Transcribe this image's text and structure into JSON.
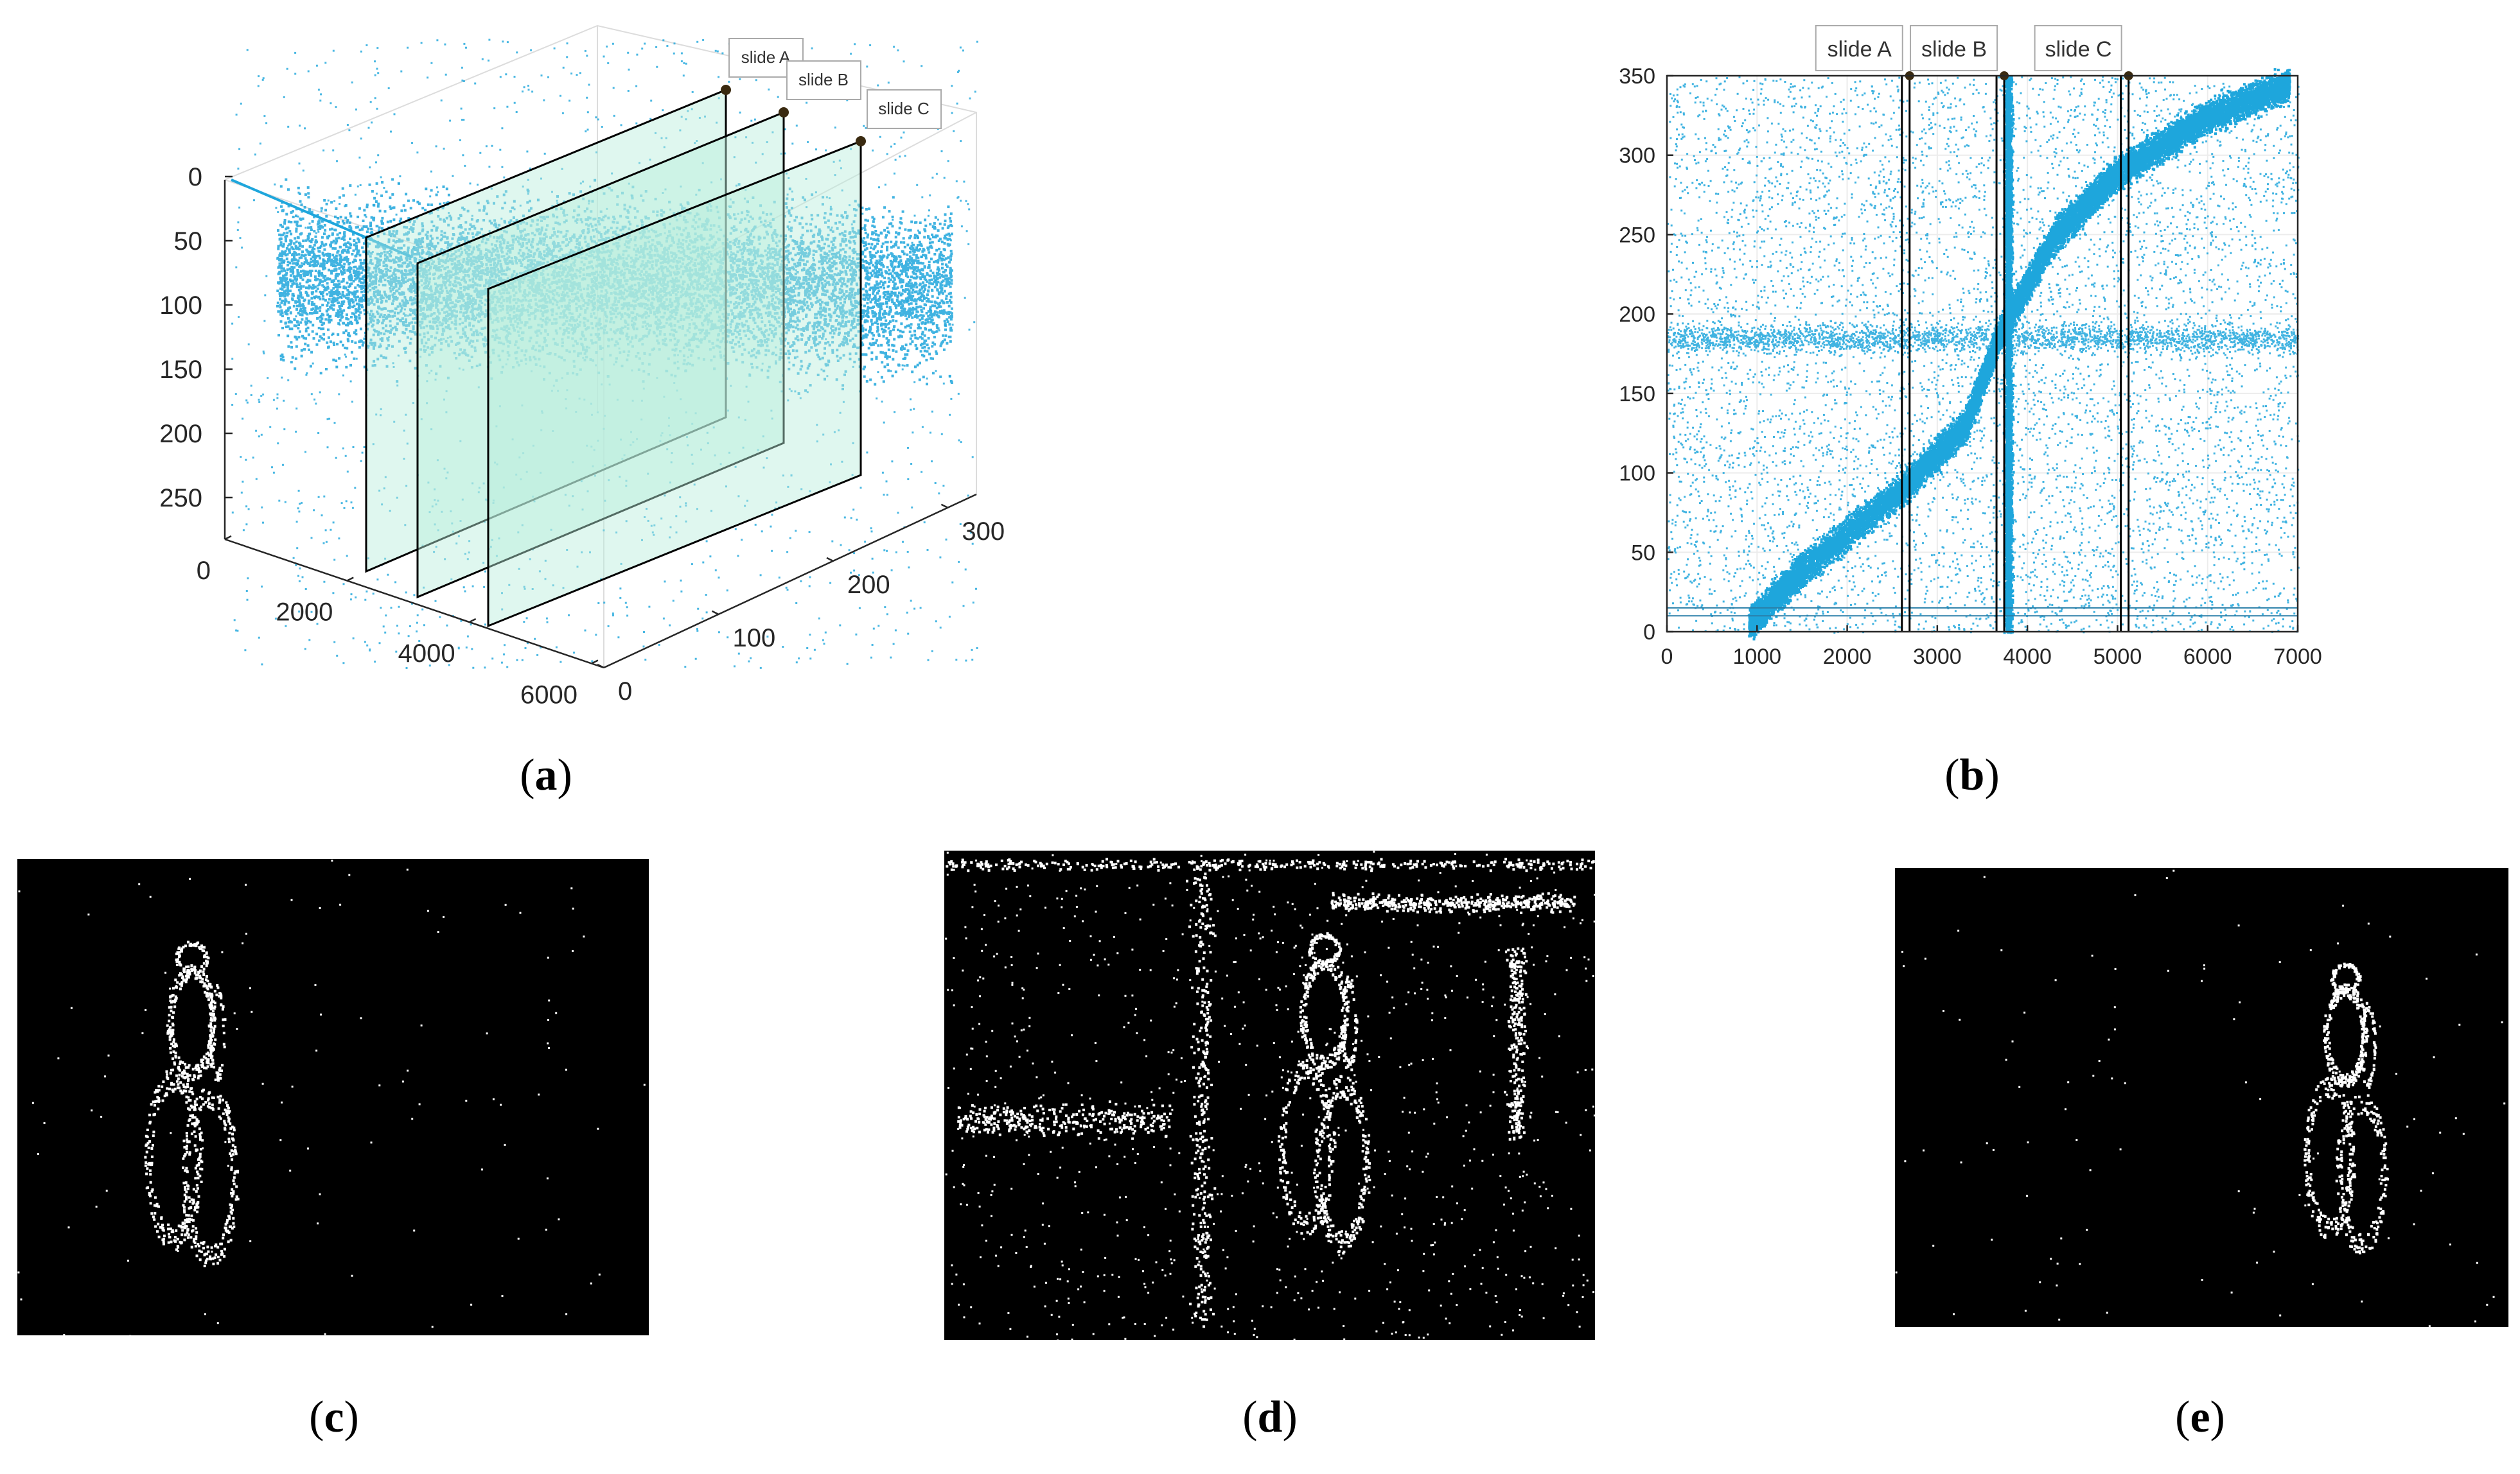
{
  "figure": {
    "captions": {
      "a": {
        "open": "(",
        "letter": "a",
        "close": ")"
      },
      "b": {
        "open": "(",
        "letter": "b",
        "close": ")"
      },
      "c": {
        "open": "(",
        "letter": "c",
        "close": ")"
      },
      "d": {
        "open": "(",
        "letter": "d",
        "close": ")"
      },
      "e": {
        "open": "(",
        "letter": "e",
        "close": ")"
      }
    }
  },
  "colors": {
    "points": "#1ea6dc",
    "slide_fill": "#b8eedc",
    "frame": "#000000",
    "grid": "#e0e0e0"
  },
  "chart_data": [
    {
      "id": "a",
      "type": "scatter",
      "dimensions": 3,
      "title": "",
      "z_ticks": [
        "0",
        "50",
        "100",
        "150",
        "200",
        "250"
      ],
      "x_ticks": [
        "0",
        "2000",
        "4000",
        "6000"
      ],
      "y_ticks": [
        "0",
        "100",
        "200",
        "300"
      ],
      "slides": [
        "slide A",
        "slide B",
        "slide C"
      ],
      "description_free": true
    },
    {
      "id": "b",
      "type": "scatter",
      "title": "",
      "xlim": [
        0,
        7000
      ],
      "ylim": [
        0,
        350
      ],
      "x_ticks": [
        "0",
        "1000",
        "2000",
        "3000",
        "4000",
        "5000",
        "6000",
        "7000"
      ],
      "y_ticks": [
        "0",
        "50",
        "100",
        "150",
        "200",
        "250",
        "300",
        "350"
      ],
      "slides": [
        {
          "label": "slide A",
          "x": 2650
        },
        {
          "label": "slide B",
          "x": 3700
        },
        {
          "label": "slide C",
          "x": 5080
        }
      ],
      "trajectory": [
        [
          900,
          5
        ],
        [
          1500,
          40
        ],
        [
          2600,
          90
        ],
        [
          3300,
          130
        ],
        [
          3700,
          190
        ],
        [
          4300,
          250
        ],
        [
          5000,
          290
        ],
        [
          6000,
          325
        ],
        [
          6900,
          345
        ]
      ]
    }
  ],
  "event_frames": [
    {
      "id": "c",
      "slide": "slide A"
    },
    {
      "id": "d",
      "slide": "slide B"
    },
    {
      "id": "e",
      "slide": "slide C"
    }
  ]
}
